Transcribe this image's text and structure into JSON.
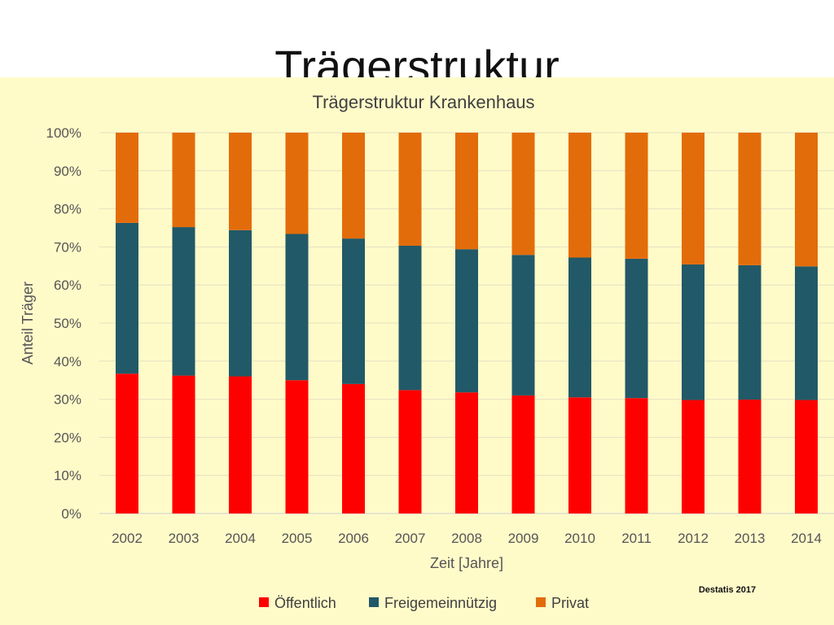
{
  "slide": {
    "title": "Trägerstruktur"
  },
  "chart_data": {
    "type": "bar",
    "stacked": true,
    "title": "Trägerstruktur Krankenhaus",
    "xlabel": "Zeit [Jahre]",
    "ylabel": "Anteil Träger",
    "ylim": [
      0,
      100
    ],
    "yticks": [
      "0%",
      "10%",
      "20%",
      "30%",
      "40%",
      "50%",
      "60%",
      "70%",
      "80%",
      "90%",
      "100%"
    ],
    "categories": [
      "2002",
      "2003",
      "2004",
      "2005",
      "2006",
      "2007",
      "2008",
      "2009",
      "2010",
      "2011",
      "2012",
      "2013",
      "2014"
    ],
    "series": [
      {
        "name": "Öffentlich",
        "color": "#ff0000",
        "values": [
          36.7,
          36.2,
          36.0,
          35.0,
          34.0,
          32.4,
          31.8,
          31.0,
          30.5,
          30.3,
          29.8,
          29.9,
          29.8
        ]
      },
      {
        "name": "Freigemeinnützig",
        "color": "#215968",
        "values": [
          39.6,
          39.0,
          38.4,
          38.4,
          38.2,
          37.9,
          37.6,
          36.9,
          36.7,
          36.6,
          35.6,
          35.3,
          35.1
        ]
      },
      {
        "name": "Privat",
        "color": "#e36c0a",
        "values": [
          23.7,
          24.8,
          25.6,
          26.6,
          27.8,
          29.7,
          30.6,
          32.1,
          32.8,
          33.1,
          34.6,
          34.8,
          35.1
        ]
      }
    ],
    "grid": true,
    "legend_position": "bottom",
    "source": "Destatis 2017"
  }
}
